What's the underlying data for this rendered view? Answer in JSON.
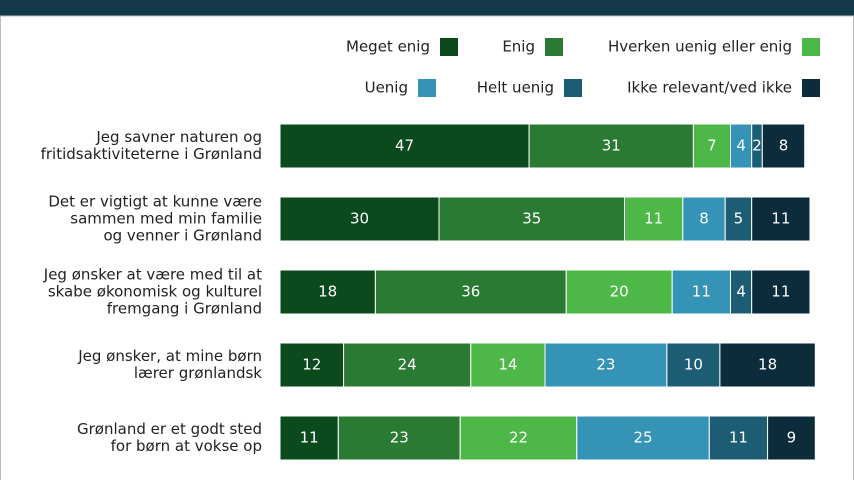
{
  "chart_data": {
    "type": "stacked_barh",
    "categories": [
      [
        "Jeg savner naturen og",
        "fritidsaktiviteterne i Grønland"
      ],
      [
        "Det er vigtigt at kunne være",
        "sammen med min familie",
        "og venner i Grønland"
      ],
      [
        "Jeg ønsker at være med til at",
        "skabe økonomisk og kulturel",
        "fremgang i Grønland"
      ],
      [
        "Jeg ønsker, at mine børn",
        "lærer grønlandsk"
      ],
      [
        "Grønland er et godt sted",
        "for børn at vokse op"
      ]
    ],
    "series": [
      {
        "name": "Meget enig",
        "color": "#0b4a1c",
        "values": [
          47,
          30,
          18,
          12,
          11
        ]
      },
      {
        "name": "Enig",
        "color": "#2b7a33",
        "values": [
          31,
          35,
          36,
          24,
          23
        ]
      },
      {
        "name": "Hverken uenig eller enig",
        "color": "#4db848",
        "values": [
          7,
          11,
          20,
          14,
          22
        ]
      },
      {
        "name": "Uenig",
        "color": "#3594b5",
        "values": [
          4,
          8,
          11,
          23,
          25
        ]
      },
      {
        "name": "Helt uenig",
        "color": "#1c5d73",
        "values": [
          2,
          5,
          4,
          10,
          11
        ]
      },
      {
        "name": "Ikke relevant/ved ikke",
        "color": "#0c2b3b",
        "values": [
          8,
          11,
          11,
          18,
          9
        ]
      }
    ],
    "xlim": [
      0,
      100
    ]
  }
}
